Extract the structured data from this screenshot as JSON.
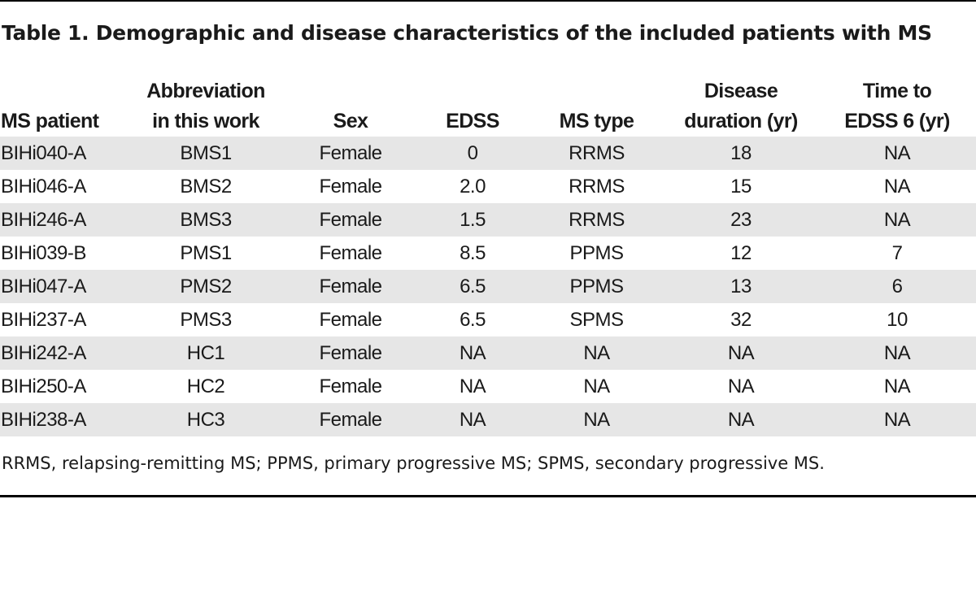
{
  "caption": "Table 1. Demographic and disease characteristics of the included patients with MS",
  "columns": [
    [
      "MS patient"
    ],
    [
      "Abbreviation",
      "in this work"
    ],
    [
      "Sex"
    ],
    [
      "EDSS"
    ],
    [
      "MS type"
    ],
    [
      "Disease",
      "duration (yr)"
    ],
    [
      "Time to",
      "EDSS 6 (yr)"
    ]
  ],
  "rows": [
    [
      "BIHi040-A",
      "BMS1",
      "Female",
      "0",
      "RRMS",
      "18",
      "NA"
    ],
    [
      "BIHi046-A",
      "BMS2",
      "Female",
      "2.0",
      "RRMS",
      "15",
      "NA"
    ],
    [
      "BIHi246-A",
      "BMS3",
      "Female",
      "1.5",
      "RRMS",
      "23",
      "NA"
    ],
    [
      "BIHi039-B",
      "PMS1",
      "Female",
      "8.5",
      "PPMS",
      "12",
      "7"
    ],
    [
      "BIHi047-A",
      "PMS2",
      "Female",
      "6.5",
      "PPMS",
      "13",
      "6"
    ],
    [
      "BIHi237-A",
      "PMS3",
      "Female",
      "6.5",
      "SPMS",
      "32",
      "10"
    ],
    [
      "BIHi242-A",
      "HC1",
      "Female",
      "NA",
      "NA",
      "NA",
      "NA"
    ],
    [
      "BIHi250-A",
      "HC2",
      "Female",
      "NA",
      "NA",
      "NA",
      "NA"
    ],
    [
      "BIHi238-A",
      "HC3",
      "Female",
      "NA",
      "NA",
      "NA",
      "NA"
    ]
  ],
  "footnote": "RRMS, relapsing-remitting MS; PPMS, primary progressive MS; SPMS, secondary progressive MS."
}
